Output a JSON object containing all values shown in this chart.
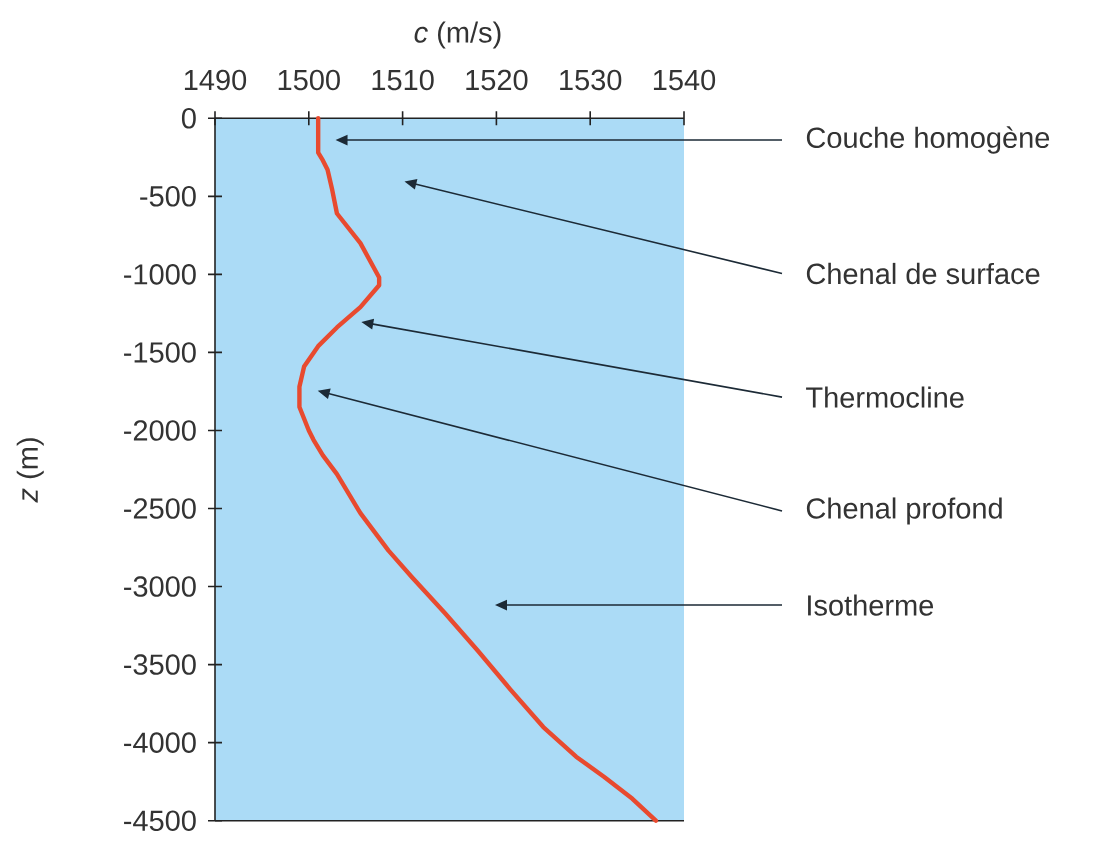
{
  "chart_data": {
    "type": "line",
    "xlabel": "*c* (m/s)",
    "ylabel": "*z* (m)",
    "xlim": [
      1490,
      1540
    ],
    "xticks": [
      1490,
      1500,
      1510,
      1520,
      1530,
      1540
    ],
    "ylim": [
      -4500,
      0
    ],
    "yticks": [
      0,
      -500,
      -1000,
      -1500,
      -2000,
      -2500,
      -3000,
      -3500,
      -4000,
      -4500
    ],
    "series": [
      {
        "color": "#e84a2f",
        "x": [
          1501,
          1501,
          1501.5,
          1502,
          1502.5,
          1503,
          1505.5,
          1507.5,
          1507.5,
          1505.5,
          1503,
          1501,
          1499.5,
          1499,
          1499,
          1500,
          1500.5,
          1501.5,
          1503,
          1505.5,
          1508.5,
          1511,
          1514.5,
          1518,
          1521.5,
          1525,
          1528.5,
          1531.5,
          1534.5,
          1537
        ],
        "values": [
          0,
          -220,
          -270,
          -330,
          -460,
          -610,
          -800,
          -1020,
          -1070,
          -1210,
          -1340,
          -1460,
          -1590,
          -1720,
          -1850,
          -2000,
          -2060,
          -2160,
          -2280,
          -2530,
          -2770,
          -2940,
          -3170,
          -3410,
          -3660,
          -3900,
          -4090,
          -4220,
          -4360,
          -4500
        ]
      }
    ],
    "annotations": [
      "Couche homogène",
      "Chenal de surface",
      "Thermocline",
      "Chenal profond",
      "Isotherme"
    ]
  }
}
